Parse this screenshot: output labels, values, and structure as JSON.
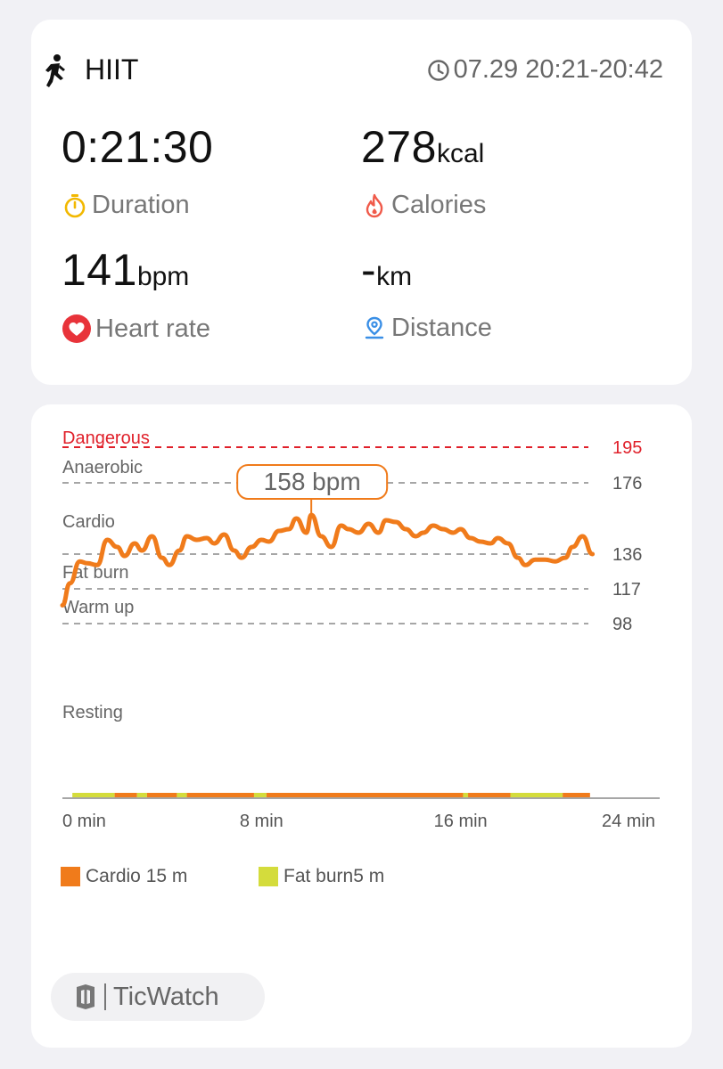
{
  "workout": {
    "type": "HIIT",
    "time_range": "07.29 20:21-20:42",
    "icon": "running-person-icon"
  },
  "metrics": {
    "duration": {
      "value": "0:21:30",
      "unit": "",
      "label": "Duration",
      "icon": "stopwatch-icon",
      "icon_color": "#f2b800"
    },
    "calories": {
      "value": "278",
      "unit": "kcal",
      "label": "Calories",
      "icon": "flame-icon",
      "icon_color": "#f05a4a"
    },
    "heart_rate": {
      "value": "141",
      "unit": "bpm",
      "label": "Heart rate",
      "icon": "heart-icon",
      "icon_color": "#e8333a"
    },
    "distance": {
      "value": "-",
      "unit": "km",
      "label": "Distance",
      "icon": "location-pin-icon",
      "icon_color": "#3a8fe6"
    }
  },
  "chart_data": {
    "type": "line",
    "xlabel": "",
    "ylabel": "",
    "x_ticks": [
      "0 min",
      "8 min",
      "16 min",
      "24 min"
    ],
    "x_tick_values": [
      0,
      8,
      16,
      24
    ],
    "xlim": [
      0,
      24
    ],
    "ylim": [
      0,
      195
    ],
    "zones": [
      {
        "name": "Dangerous",
        "threshold": 195,
        "color": "#e0202a"
      },
      {
        "name": "Anaerobic",
        "threshold": 176,
        "color": "#666666"
      },
      {
        "name": "Cardio",
        "threshold": 136,
        "color": "#666666"
      },
      {
        "name": "Fat burn",
        "threshold": 117,
        "color": "#666666"
      },
      {
        "name": "Warm up",
        "threshold": 98,
        "color": "#666666"
      },
      {
        "name": "Resting",
        "threshold": null,
        "color": "#666666"
      }
    ],
    "peak_label": "158 bpm",
    "peak_point": {
      "x": 10.0,
      "y": 158
    },
    "series": [
      {
        "color": "#f07b1b",
        "x": [
          0.0,
          0.3,
          0.7,
          1.0,
          1.4,
          1.8,
          2.2,
          2.5,
          2.9,
          3.2,
          3.6,
          4.0,
          4.3,
          4.7,
          5.0,
          5.4,
          5.8,
          6.1,
          6.5,
          6.9,
          7.2,
          7.6,
          8.0,
          8.3,
          8.7,
          9.1,
          9.4,
          9.8,
          10.0,
          10.4,
          10.8,
          11.2,
          11.5,
          11.9,
          12.3,
          12.7,
          13.0,
          13.4,
          13.8,
          14.2,
          14.5,
          14.9,
          15.3,
          15.7,
          16.0,
          16.4,
          16.8,
          17.2,
          17.5,
          17.9,
          18.3,
          18.6,
          19.0,
          19.4,
          19.8,
          20.2,
          20.5,
          20.9,
          21.3
        ],
        "y": [
          108,
          120,
          132,
          131,
          130,
          144,
          140,
          135,
          142,
          138,
          146,
          134,
          130,
          138,
          146,
          144,
          145,
          142,
          147,
          138,
          134,
          140,
          144,
          143,
          149,
          150,
          156,
          148,
          158,
          146,
          140,
          152,
          150,
          148,
          153,
          148,
          155,
          154,
          150,
          146,
          148,
          152,
          150,
          148,
          150,
          145,
          143,
          142,
          145,
          142,
          134,
          130,
          133,
          133,
          132,
          134,
          140,
          146,
          136
        ]
      }
    ],
    "zone_bar": {
      "segments": [
        {
          "zone": "Fat burn",
          "from": 0.4,
          "to": 2.1
        },
        {
          "zone": "Cardio",
          "from": 2.1,
          "to": 3.0
        },
        {
          "zone": "Fat burn",
          "from": 3.0,
          "to": 3.4
        },
        {
          "zone": "Cardio",
          "from": 3.4,
          "to": 4.6
        },
        {
          "zone": "Fat burn",
          "from": 4.6,
          "to": 5.0
        },
        {
          "zone": "Cardio",
          "from": 5.0,
          "to": 7.7
        },
        {
          "zone": "Fat burn",
          "from": 7.7,
          "to": 8.2
        },
        {
          "zone": "Cardio",
          "from": 8.2,
          "to": 16.1
        },
        {
          "zone": "Fat burn",
          "from": 16.1,
          "to": 16.3
        },
        {
          "zone": "Cardio",
          "from": 16.3,
          "to": 18.0
        },
        {
          "zone": "Fat burn",
          "from": 18.0,
          "to": 20.1
        },
        {
          "zone": "Cardio",
          "from": 20.1,
          "to": 21.2
        }
      ]
    },
    "legend": [
      {
        "label": "Cardio 15 m",
        "color": "#f07b1b"
      },
      {
        "label": "Fat burn5 m",
        "color": "#d4dc3c"
      }
    ]
  },
  "brand": {
    "name": "TicWatch",
    "icon": "ticwatch-logo-icon"
  }
}
